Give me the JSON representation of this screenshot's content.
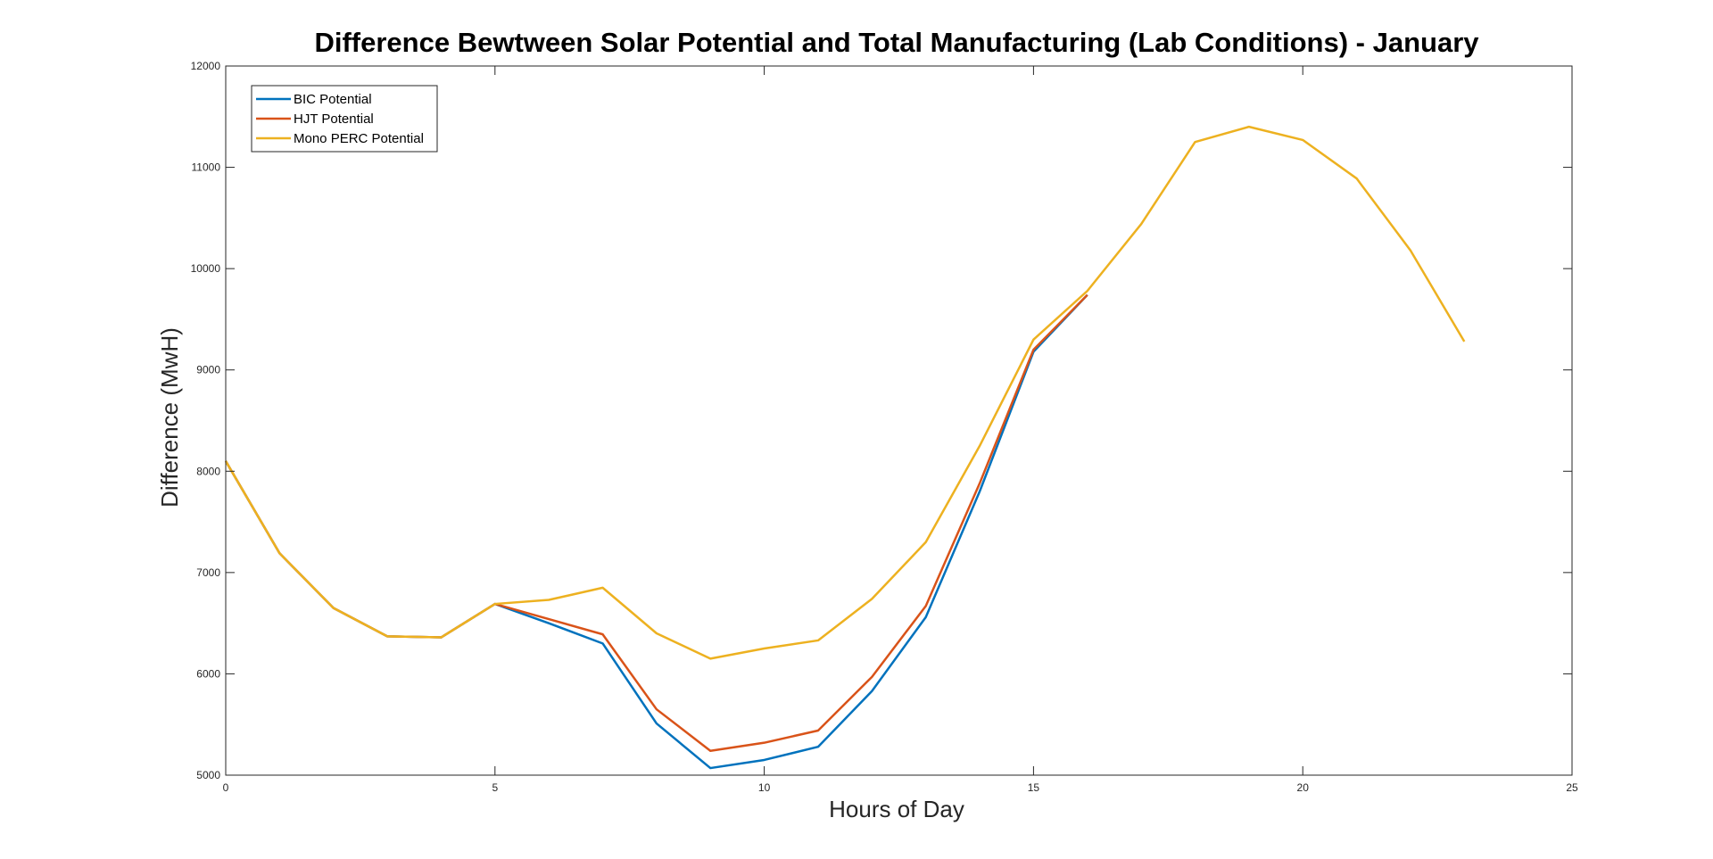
{
  "chart_data": {
    "type": "line",
    "title": "Difference Bewtween Solar Potential and Total Manufacturing (Lab Conditions) - January",
    "xlabel": "Hours of Day",
    "ylabel": "Difference (MwH)",
    "xlim": [
      0,
      25
    ],
    "ylim": [
      5000,
      12000
    ],
    "xticks": [
      0,
      5,
      10,
      15,
      20,
      25
    ],
    "yticks": [
      5000,
      6000,
      7000,
      8000,
      9000,
      10000,
      11000,
      12000
    ],
    "grid": false,
    "legend_position": "top-left",
    "x": [
      0,
      1,
      2,
      3,
      4,
      5,
      6,
      7,
      8,
      9,
      10,
      11,
      12,
      13,
      14,
      15,
      16,
      17,
      18,
      19,
      20,
      21,
      22,
      23
    ],
    "series": [
      {
        "name": "BIC Potential",
        "color": "#0072BD",
        "values": [
          8100,
          7190,
          6650,
          6370,
          6360,
          6690,
          6500,
          6300,
          5510,
          5070,
          5150,
          5280,
          5830,
          6560,
          7800,
          9180,
          9740,
          null,
          null,
          null,
          null,
          null,
          null,
          null
        ]
      },
      {
        "name": "HJT Potential",
        "color": "#D95319",
        "values": [
          8100,
          7190,
          6650,
          6370,
          6360,
          6690,
          6540,
          6390,
          5650,
          5240,
          5320,
          5440,
          5970,
          6670,
          7880,
          9200,
          9740,
          null,
          null,
          null,
          null,
          null,
          null,
          null
        ]
      },
      {
        "name": "Mono PERC Potential",
        "color": "#EDB120",
        "values": [
          8100,
          7190,
          6650,
          6370,
          6360,
          6690,
          6730,
          6850,
          6400,
          6150,
          6250,
          6330,
          6740,
          7300,
          8250,
          9300,
          9780,
          10440,
          11250,
          11400,
          11270,
          10890,
          10180,
          9280
        ]
      }
    ]
  }
}
